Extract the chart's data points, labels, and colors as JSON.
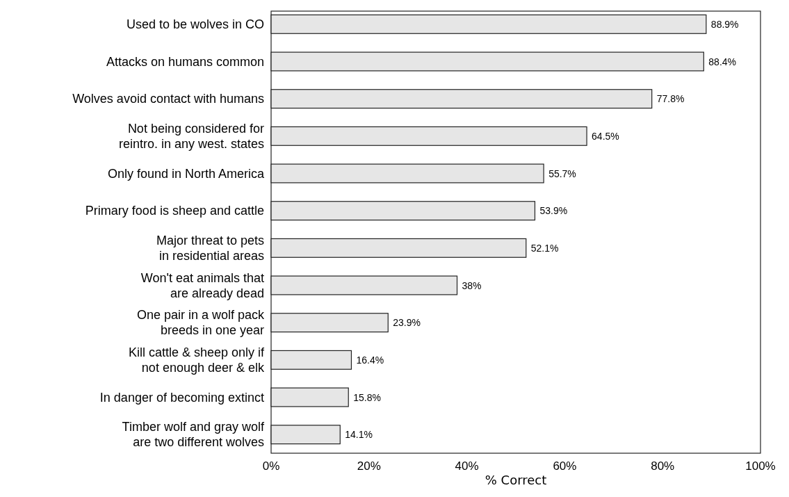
{
  "chart_data": {
    "type": "bar",
    "orientation": "horizontal",
    "xlabel": "% Correct",
    "categories": [
      "Used to be wolves in CO",
      "Attacks on humans common",
      "Wolves avoid contact with humans",
      "Not being considered for\nreintro. in any west. states",
      "Only found in North America",
      "Primary food is sheep and cattle",
      "Major threat to pets\nin residential areas",
      "Won't eat animals that\nare already dead",
      "One pair in a wolf pack\nbreeds in one year",
      "Kill cattle & sheep only if\nnot enough deer & elk",
      "In danger of becoming extinct",
      "Timber wolf and gray wolf\nare two different wolves"
    ],
    "values": [
      88.9,
      88.4,
      77.8,
      64.5,
      55.7,
      53.9,
      52.1,
      38,
      23.9,
      16.4,
      15.8,
      14.1
    ],
    "value_labels": [
      "88.9%",
      "88.4%",
      "77.8%",
      "64.5%",
      "55.7%",
      "53.9%",
      "52.1%",
      "38%",
      "23.9%",
      "16.4%",
      "15.8%",
      "14.1%"
    ],
    "color": "#e6e6e6",
    "xlim": [
      0,
      100
    ],
    "xticks": [
      {
        "value": 0,
        "label": "0%"
      },
      {
        "value": 20,
        "label": "20%"
      },
      {
        "value": 40,
        "label": "40%"
      },
      {
        "value": 60,
        "label": "60%"
      },
      {
        "value": 80,
        "label": "80%"
      },
      {
        "value": 100,
        "label": "100%"
      }
    ],
    "grid": false
  }
}
